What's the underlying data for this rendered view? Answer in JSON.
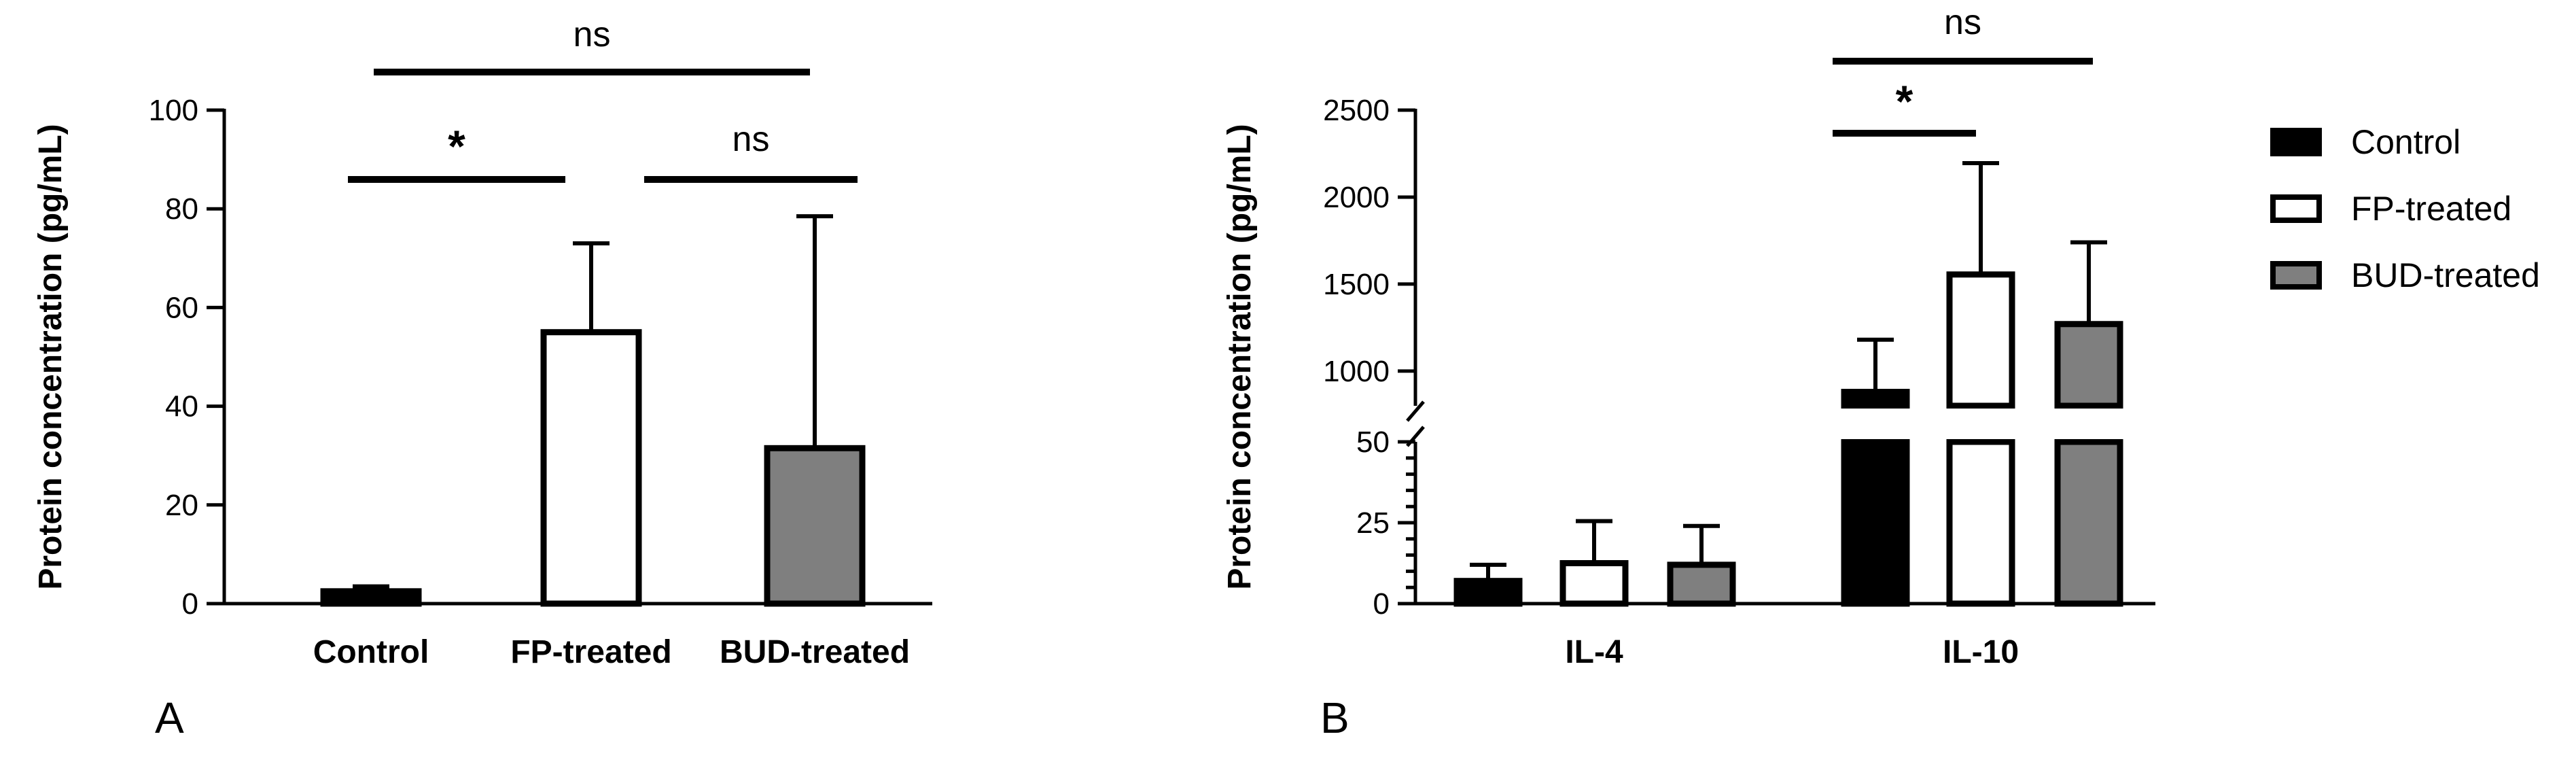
{
  "colors": {
    "control": "#000000",
    "fp": "#ffffff",
    "bud": "#7f7f7f",
    "stroke": "#000000"
  },
  "legend": {
    "position": "right",
    "items": [
      {
        "label": "Control",
        "color": "#000000"
      },
      {
        "label": "FP-treated",
        "color": "#ffffff"
      },
      {
        "label": "BUD-treated",
        "color": "#7f7f7f"
      }
    ]
  },
  "chart_data": [
    {
      "type": "bar",
      "panel": "A",
      "ylabel": "Protein concentration (pg/mL)",
      "xlabel": "",
      "categories": [
        "Control",
        "FP-treated",
        "BUD-treated"
      ],
      "values": [
        2.5,
        55,
        31.5
      ],
      "errors": [
        1,
        18,
        47
      ],
      "ylim": [
        0,
        100
      ],
      "yticks": [
        0,
        20,
        40,
        60,
        80,
        100
      ],
      "significance": [
        {
          "from": 0,
          "to": 1,
          "label": "*"
        },
        {
          "from": 1,
          "to": 2,
          "label": "ns"
        },
        {
          "from": 0,
          "to": 2,
          "label": "ns"
        }
      ],
      "grid": false
    },
    {
      "type": "bar",
      "panel": "B",
      "ylabel": "Protein concentration (pg/mL)",
      "xlabel": "",
      "categories": [
        "IL-4",
        "IL-10"
      ],
      "series": [
        {
          "name": "Control",
          "values": [
            7,
            880
          ],
          "errors": [
            5,
            300
          ]
        },
        {
          "name": "FP-treated",
          "values": [
            12.5,
            1555
          ],
          "errors": [
            13,
            640
          ]
        },
        {
          "name": "BUD-treated",
          "values": [
            12,
            1270
          ],
          "errors": [
            12,
            470
          ]
        }
      ],
      "ylim": [
        0,
        2500
      ],
      "axis_break": [
        50,
        800
      ],
      "yticks": [
        0,
        25,
        50,
        1000,
        1500,
        2000,
        2500
      ],
      "significance": [
        {
          "category": "IL-10",
          "from": 0,
          "to": 1,
          "label": "*"
        },
        {
          "category": "IL-10",
          "from": 0,
          "to": 2,
          "label": "ns"
        }
      ],
      "grid": false
    }
  ]
}
